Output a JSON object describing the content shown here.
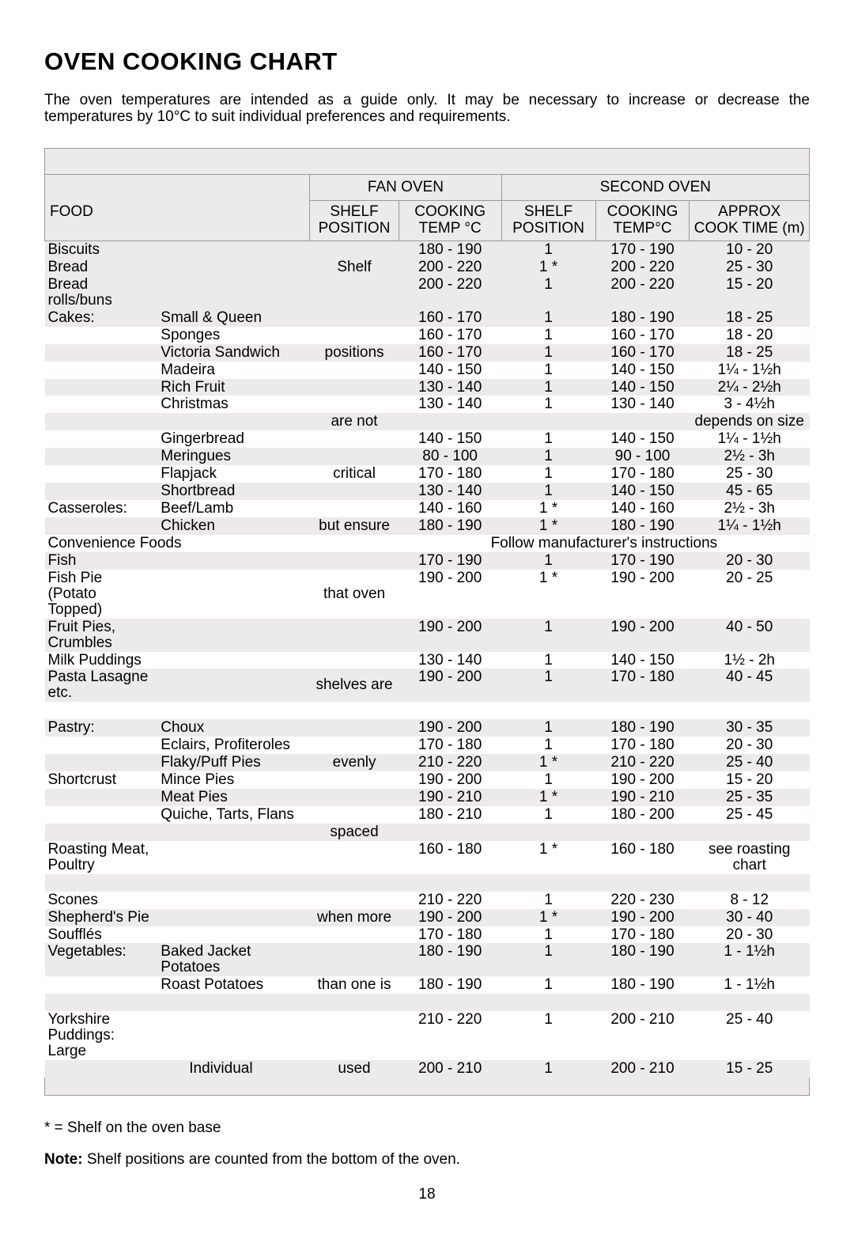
{
  "page": {
    "title": "OVEN COOKING CHART",
    "intro": "The oven temperatures are intended as a guide only. It may be necessary to increase or decrease the temperatures by 10°C to suit individual preferences and requirements.",
    "fan_label": "FAN OVEN",
    "second_label": "SECOND OVEN",
    "food_label": "FOOD",
    "shelf_label": "SHELF POSITION",
    "temp_label": "COOKING TEMP °C",
    "shelf2_label": "SHELF POSITION",
    "temp2_label": "COOKING TEMP°C",
    "time_label": "APPROX COOK TIME (m)",
    "shelf_column_note": [
      "Shelf",
      "positions",
      "are not",
      "critical",
      "but ensure",
      "that oven",
      "shelves are",
      "evenly",
      "spaced",
      "when more",
      "than one is",
      "used"
    ],
    "footnote1": "* = Shelf on the oven base",
    "footnote2_label": "Note:",
    "footnote2": "  Shelf positions are counted from the bottom of the oven.",
    "page_number": "18",
    "convenience_text": "Follow manufacturer's instructions"
  },
  "rows": [
    {
      "band": "g",
      "a": "Biscuits",
      "b": "",
      "s": "",
      "t1": "180 - 190",
      "sp": "1",
      "t2": "170 - 190",
      "tm": "10 - 20"
    },
    {
      "band": "g",
      "a": "Bread",
      "b": "",
      "s": "Shelf",
      "t1": "200 - 220",
      "sp": "1 *",
      "t2": "200 - 220",
      "tm": "25 - 30"
    },
    {
      "band": "g",
      "a": "Bread rolls/buns",
      "b": "",
      "s": "",
      "t1": "200 - 220",
      "sp": "1",
      "t2": "200 - 220",
      "tm": "15 - 20"
    },
    {
      "band": "g",
      "a": "Cakes:",
      "b": "Small & Queen",
      "s": "",
      "t1": "160 - 170",
      "sp": "1",
      "t2": "180 - 190",
      "tm": "18 - 25"
    },
    {
      "band": "w",
      "a": "",
      "b": "Sponges",
      "s": "",
      "t1": "160 - 170",
      "sp": "1",
      "t2": "160 - 170",
      "tm": "18 - 20"
    },
    {
      "band": "g",
      "a": "",
      "b": "Victoria Sandwich",
      "s": "positions",
      "t1": "160 - 170",
      "sp": "1",
      "t2": "160 - 170",
      "tm": "18 - 25"
    },
    {
      "band": "w",
      "a": "",
      "b": "Madeira",
      "s": "",
      "t1": "140 - 150",
      "sp": "1",
      "t2": "140 - 150",
      "tm": "1¼ - 1½h"
    },
    {
      "band": "g",
      "a": "",
      "b": "Rich Fruit",
      "s": "",
      "t1": "130 - 140",
      "sp": "1",
      "t2": "140 - 150",
      "tm": "2¼ - 2½h"
    },
    {
      "band": "w",
      "a": "",
      "b": "Christmas",
      "s": "",
      "t1": "130 - 140",
      "sp": "1",
      "t2": "130 - 140",
      "tm": "3 - 4½h"
    },
    {
      "band": "g",
      "a": "",
      "b": "",
      "s": "are not",
      "t1": "",
      "sp": "",
      "t2": "",
      "tm": "depends on size"
    },
    {
      "band": "w",
      "a": "",
      "b": "Gingerbread",
      "s": "",
      "t1": "140 - 150",
      "sp": "1",
      "t2": "140 - 150",
      "tm": "1¼ - 1½h"
    },
    {
      "band": "g",
      "a": "",
      "b": "Meringues",
      "s": "",
      "t1": "  80 - 100",
      "sp": "1",
      "t2": "  90 - 100",
      "tm": "2½ - 3h"
    },
    {
      "band": "w",
      "a": "",
      "b": "Flapjack",
      "s": "critical",
      "t1": "170 - 180",
      "sp": "1",
      "t2": "170 - 180",
      "tm": "25 - 30"
    },
    {
      "band": "g",
      "a": "",
      "b": "Shortbread",
      "s": "",
      "t1": "130 - 140",
      "sp": "1",
      "t2": "140 - 150",
      "tm": "45 - 65"
    },
    {
      "band": "w",
      "a": "Casseroles:",
      "b": "Beef/Lamb",
      "s": "",
      "t1": "140 - 160",
      "sp": "1 *",
      "t2": "140 - 160",
      "tm": "2½ - 3h"
    },
    {
      "band": "g",
      "a": "",
      "b": "Chicken",
      "s": "but ensure",
      "t1": "180 - 190",
      "sp": "1 *",
      "t2": "180 - 190",
      "tm": "1¼ - 1½h"
    },
    {
      "band": "w",
      "a": "Convenience Foods",
      "b": "",
      "s": "",
      "conv": true
    },
    {
      "band": "g",
      "a": "Fish",
      "b": "",
      "s": "",
      "t1": "170 - 190",
      "sp": "1",
      "t2": "170 - 190",
      "tm": "20 - 30"
    },
    {
      "band": "w",
      "a": "Fish Pie (Potato Topped)",
      "b": "",
      "s": "that oven",
      "t1": "190 - 200",
      "sp": "1 *",
      "t2": "190 - 200",
      "tm": "20 - 25"
    },
    {
      "band": "g",
      "a": "Fruit Pies, Crumbles",
      "b": "",
      "s": "",
      "t1": "190 - 200",
      "sp": "1",
      "t2": "190 - 200",
      "tm": "40 - 50"
    },
    {
      "band": "w",
      "a": "Milk Puddings",
      "b": "",
      "s": "",
      "t1": "130 - 140",
      "sp": "1",
      "t2": "140 - 150",
      "tm": "1½ - 2h"
    },
    {
      "band": "g",
      "a": "Pasta Lasagne etc.",
      "b": "",
      "s": "shelves are",
      "t1": "190 - 200",
      "sp": "1",
      "t2": "170 - 180",
      "tm": "40 - 45"
    },
    {
      "band": "w",
      "spacer": true
    },
    {
      "band": "g",
      "a": "Pastry:",
      "b": "Choux",
      "s": "",
      "t1": "190 - 200",
      "sp": "1",
      "t2": "180 - 190",
      "tm": "30 - 35"
    },
    {
      "band": "w",
      "a": "",
      "b": "Eclairs, Profiteroles",
      "s": "",
      "t1": "170 - 180",
      "sp": "1",
      "t2": "170 - 180",
      "tm": "20 - 30"
    },
    {
      "band": "g",
      "a": "",
      "b": "Flaky/Puff Pies",
      "s": "evenly",
      "t1": "210 - 220",
      "sp": "1 *",
      "t2": "210 - 220",
      "tm": "25 - 40"
    },
    {
      "band": "w",
      "a": "Shortcrust",
      "b": "Mince Pies",
      "s": "",
      "t1": "190 - 200",
      "sp": "1",
      "t2": "190 - 200",
      "tm": "15 - 20"
    },
    {
      "band": "g",
      "a": "",
      "b": "Meat Pies",
      "s": "",
      "t1": "190 - 210",
      "sp": "1 *",
      "t2": "190 - 210",
      "tm": "25 - 35"
    },
    {
      "band": "w",
      "a": "",
      "b": "Quiche, Tarts, Flans",
      "s": "",
      "t1": "180 - 210",
      "sp": "1",
      "t2": "180 - 200",
      "tm": "25 - 45"
    },
    {
      "band": "g",
      "a": "",
      "b": "",
      "s": "spaced",
      "t1": "",
      "sp": "",
      "t2": "",
      "tm": ""
    },
    {
      "band": "w",
      "a": "Roasting Meat, Poultry",
      "b": "",
      "s": "",
      "t1": "160 - 180",
      "sp": "1 *",
      "t2": "160 - 180",
      "tm": "see roasting chart"
    },
    {
      "band": "g",
      "spacer": true
    },
    {
      "band": "w",
      "a": "Scones",
      "b": "",
      "s": "",
      "t1": "210 - 220",
      "sp": "1",
      "t2": "220 - 230",
      "tm": "8 - 12"
    },
    {
      "band": "g",
      "a": "Shepherd's Pie",
      "b": "",
      "s": "when more",
      "t1": "190 - 200",
      "sp": "1 *",
      "t2": "190 - 200",
      "tm": "30 - 40"
    },
    {
      "band": "w",
      "a": "Soufflés",
      "b": "",
      "s": "",
      "t1": "170 - 180",
      "sp": "1",
      "t2": "170 - 180",
      "tm": "20 - 30"
    },
    {
      "band": "g",
      "a": "Vegetables:",
      "b": "Baked Jacket Potatoes",
      "s": "",
      "t1": "180 - 190",
      "sp": "1",
      "t2": "180 - 190",
      "tm": "1 - 1½h"
    },
    {
      "band": "w",
      "a": "",
      "b": "Roast Potatoes",
      "s": "than one is",
      "t1": "180 - 190",
      "sp": "1",
      "t2": "180 - 190",
      "tm": "1 - 1½h"
    },
    {
      "band": "g",
      "spacer": true
    },
    {
      "band": "w",
      "a": "Yorkshire Puddings: Large",
      "b": "",
      "s": "",
      "t1": "210 - 220",
      "sp": "1",
      "t2": "200 - 210",
      "tm": "25 - 40"
    },
    {
      "band": "g",
      "a": "",
      "b": "     Individual",
      "s": "used",
      "t1": "200 - 210",
      "sp": "1",
      "t2": "200 - 210",
      "tm": "15 - 25"
    }
  ]
}
